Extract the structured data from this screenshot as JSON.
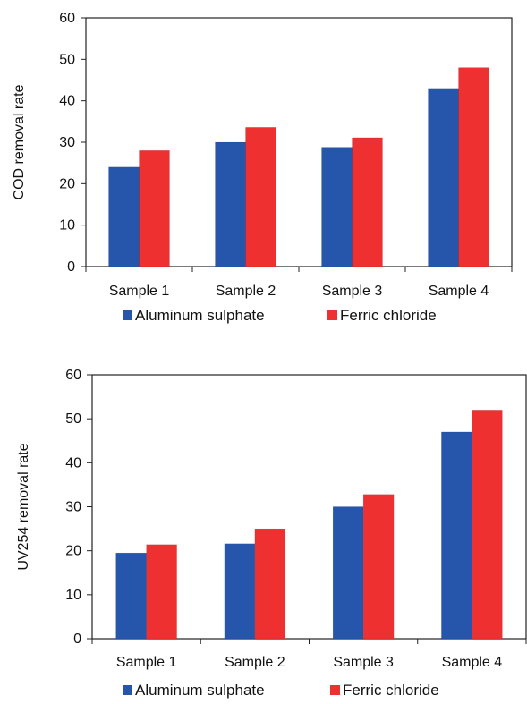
{
  "chart_data": [
    {
      "type": "bar",
      "title": "",
      "xlabel": "",
      "ylabel": "COD removal rate",
      "categories": [
        "Sample 1",
        "Sample 2",
        "Sample 3",
        "Sample 4"
      ],
      "series": [
        {
          "name": "Aluminum sulphate",
          "values": [
            24,
            30,
            28.8,
            43
          ],
          "color": "#2656ab"
        },
        {
          "name": "Ferric chloride",
          "values": [
            28,
            33.6,
            31.1,
            48
          ],
          "color": "#ee3030"
        }
      ],
      "ylim": [
        0,
        60
      ],
      "yticks": [
        "0",
        "10",
        "20",
        "30",
        "40",
        "50",
        "60"
      ],
      "grid": false,
      "legend": "bottom"
    },
    {
      "type": "bar",
      "title": "",
      "xlabel": "",
      "ylabel": "UV254 removal rate",
      "categories": [
        "Sample 1",
        "Sample 2",
        "Sample 3",
        "Sample 4"
      ],
      "series": [
        {
          "name": "Aluminum sulphate",
          "values": [
            19.5,
            21.6,
            30,
            47
          ],
          "color": "#2656ab"
        },
        {
          "name": "Ferric chloride",
          "values": [
            21.4,
            25,
            32.8,
            52
          ],
          "color": "#ee3030"
        }
      ],
      "ylim": [
        0,
        60
      ],
      "yticks": [
        "0",
        "10",
        "20",
        "30",
        "40",
        "50",
        "60"
      ],
      "grid": false,
      "legend": "bottom"
    }
  ]
}
